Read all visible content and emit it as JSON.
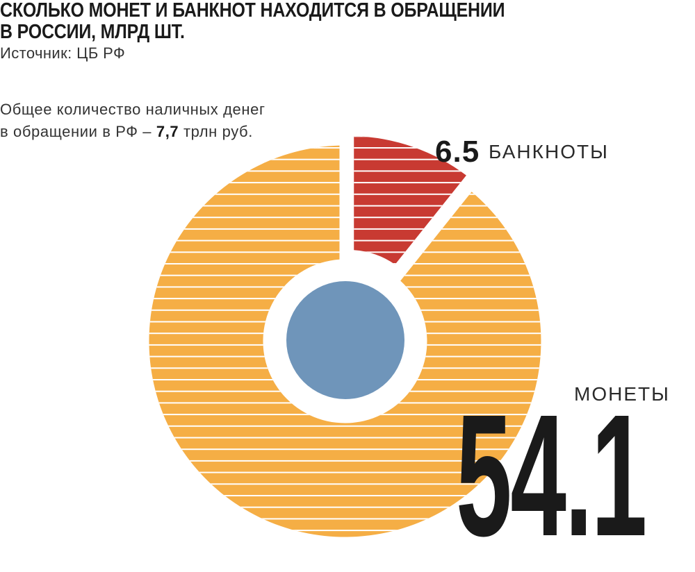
{
  "title_lines": [
    "СКОЛЬКО МОНЕТ И БАНКНОТ НАХОДИТСЯ В ОБРАЩЕНИИ",
    "В РОССИИ, МЛРД ШТ."
  ],
  "source": "Источник: ЦБ РФ",
  "total": {
    "line1": "Общее количество наличных денег",
    "line2_prefix": "в обращении в РФ – ",
    "line2_value": "7,7",
    "line2_suffix": " трлн руб."
  },
  "colors": {
    "coins": "#F5AE45",
    "banknotes": "#C83A32",
    "center": "#6F95BA",
    "stripe": "#FFFFFF"
  },
  "chart_data": {
    "type": "pie",
    "slices": [
      {
        "name": "БАНКНОТЫ",
        "value": 6.5,
        "value_label": "6.5"
      },
      {
        "name": "МОНЕТЫ",
        "value": 54.1,
        "value_label": "54.1"
      }
    ]
  }
}
